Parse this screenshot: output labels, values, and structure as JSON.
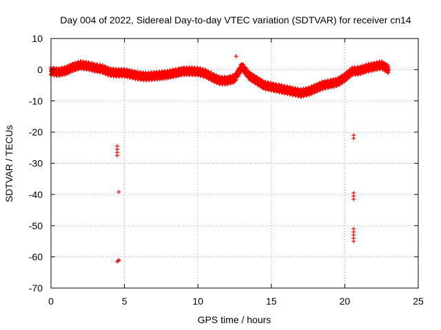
{
  "chart_data": {
    "type": "scatter",
    "title": "Day 004 of 2022, Sidereal Day-to-day VTEC variation (SDTVAR) for receiver cn14",
    "xlabel": "GPS time / hours",
    "ylabel": "SDTVAR / TECUs",
    "xlim": [
      0,
      25
    ],
    "ylim": [
      -70,
      10
    ],
    "xticks": [
      0,
      5,
      10,
      15,
      20,
      25
    ],
    "yticks": [
      10,
      0,
      -10,
      -20,
      -30,
      -40,
      -50,
      -60,
      -70
    ],
    "grid": true,
    "marker": "+",
    "series_color": "#ff0000",
    "series": [
      {
        "name": "SDTVAR",
        "main_trace_x": [
          0.0,
          0.5,
          1.0,
          1.5,
          2.0,
          2.5,
          3.0,
          3.5,
          4.0,
          4.5,
          5.0,
          5.5,
          6.0,
          6.5,
          7.0,
          7.5,
          8.0,
          8.5,
          9.0,
          9.5,
          10.0,
          10.5,
          11.0,
          11.5,
          12.0,
          12.5,
          13.0,
          13.5,
          14.0,
          14.5,
          15.0,
          15.5,
          16.0,
          16.5,
          17.0,
          17.5,
          18.0,
          18.5,
          19.0,
          19.5,
          20.0,
          20.5,
          21.0,
          21.5,
          22.0,
          22.5,
          23.0
        ],
        "main_trace_y": [
          -0.5,
          -0.8,
          -0.3,
          0.8,
          1.5,
          1.2,
          0.6,
          0.2,
          -0.8,
          -1.0,
          -1.0,
          -1.5,
          -2.0,
          -2.2,
          -2.0,
          -1.8,
          -1.5,
          -1.0,
          -0.5,
          -0.5,
          -0.6,
          -1.2,
          -2.5,
          -3.5,
          -3.5,
          -2.8,
          1.0,
          -2.0,
          -3.5,
          -5.0,
          -5.5,
          -6.0,
          -6.5,
          -7.0,
          -7.5,
          -7.0,
          -6.0,
          -5.0,
          -4.5,
          -4.0,
          -2.5,
          -0.5,
          -0.3,
          0.5,
          1.0,
          1.5,
          0.0
        ],
        "outliers_x": [
          4.5,
          4.5,
          4.5,
          4.5,
          4.6,
          4.6,
          4.5,
          4.6,
          12.6,
          20.6,
          20.6,
          20.6,
          20.6,
          20.6,
          20.6,
          20.6,
          20.6,
          20.6,
          20.6
        ],
        "outliers_y": [
          -24.5,
          -25.5,
          -26.5,
          -27.5,
          -39.2,
          -61.0,
          -61.5,
          -61.2,
          4.3,
          -21.0,
          -22.0,
          -39.5,
          -40.5,
          -41.5,
          -51.0,
          -52.0,
          -53.0,
          -54.0,
          -55.0
        ]
      }
    ]
  }
}
